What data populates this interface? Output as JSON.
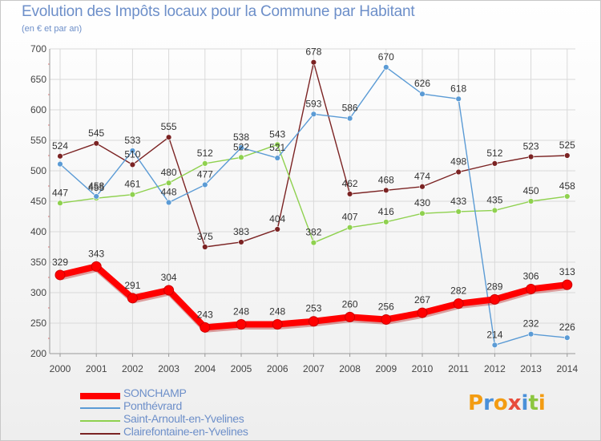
{
  "header": {
    "title": "Evolution des Impôts locaux pour la Commune par Habitant",
    "subtitle": "(en € et par an)"
  },
  "logo": {
    "letters": [
      "P",
      "r",
      "o",
      "x",
      "i",
      "t",
      "i"
    ],
    "colors": [
      "#f39c12",
      "#4a90d9",
      "#f39c12",
      "#e74c3c",
      "#4a90d9",
      "#8cc63f",
      "#f39c12"
    ]
  },
  "chart_data": {
    "type": "line",
    "title": "Evolution des Impôts locaux pour la Commune par Habitant",
    "subtitle": "(en € et par an)",
    "xlabel": "",
    "ylabel": "",
    "x": [
      "2000",
      "2001",
      "2002",
      "2003",
      "2004",
      "2005",
      "2006",
      "2007",
      "2008",
      "2009",
      "2010",
      "2011",
      "2012",
      "2013",
      "2014"
    ],
    "ylim": [
      200,
      700
    ],
    "yticks": [
      "200",
      "250",
      "300",
      "350",
      "400",
      "450",
      "500",
      "550",
      "600",
      "650",
      "700"
    ],
    "grid": true,
    "legend_position": "bottom-left",
    "series": [
      {
        "name": "SONCHAMP",
        "color": "#ff0000",
        "values": [
          329,
          343,
          291,
          304,
          243,
          248,
          248,
          253,
          260,
          256,
          267,
          282,
          289,
          306,
          313
        ],
        "labels": [
          "329",
          "343",
          "291",
          "304",
          "243",
          "248",
          "248",
          "253",
          "260",
          "256",
          "267",
          "282",
          "289",
          "306",
          "313"
        ]
      },
      {
        "name": "Ponthévrard",
        "color": "#5b9bd5",
        "values": [
          511,
          458,
          533,
          448,
          477,
          538,
          521,
          593,
          586,
          670,
          626,
          618,
          214,
          232,
          226
        ],
        "labels": [
          "",
          "458",
          "533",
          "448",
          "477",
          "538",
          "521",
          "593",
          "586",
          "670",
          "626",
          "618",
          "214",
          "232",
          "226"
        ]
      },
      {
        "name": "Saint-Arnoult-en-Yvelines",
        "color": "#8fd14f",
        "values": [
          447,
          455,
          461,
          480,
          512,
          522,
          543,
          382,
          407,
          416,
          430,
          433,
          435,
          450,
          458
        ],
        "labels": [
          "447",
          "455",
          "461",
          "480",
          "512",
          "522",
          "543",
          "382",
          "407",
          "416",
          "430",
          "433",
          "435",
          "450",
          "458"
        ]
      },
      {
        "name": "Clairefontaine-en-Yvelines",
        "color": "#7b2323",
        "values": [
          524,
          545,
          510,
          555,
          375,
          383,
          404,
          678,
          462,
          468,
          474,
          498,
          512,
          523,
          525
        ],
        "labels": [
          "524",
          "545",
          "510",
          "555",
          "375",
          "383",
          "404",
          "678",
          "462",
          "468",
          "474",
          "498",
          "512",
          "523",
          "525"
        ]
      }
    ]
  }
}
